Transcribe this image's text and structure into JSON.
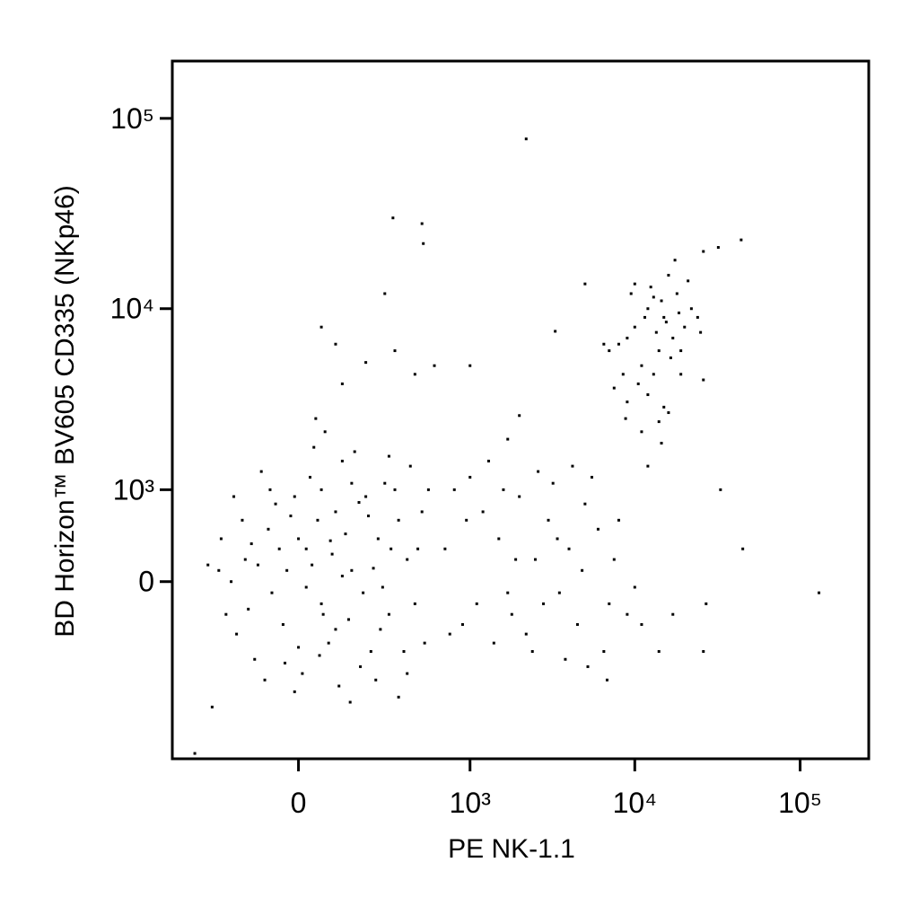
{
  "chart_data": {
    "type": "scatter",
    "x_label": "PE NK-1.1",
    "y_label": "BD Horizon™ BV605 CD335 (NKp46)",
    "xscale": "biexponential",
    "yscale": "biexponential",
    "color": "#000000",
    "xlim": [
      -520,
      260000
    ],
    "ylim": [
      -3100,
      200000
    ],
    "xticks": [
      0,
      {
        "value": 1000,
        "label": "10³"
      },
      {
        "value": 10000,
        "label": "10⁴"
      },
      {
        "value": 100000,
        "label": "10⁵"
      }
    ],
    "yticks": [
      0,
      {
        "value": 1000,
        "label": "10³"
      },
      {
        "value": 10000,
        "label": "10⁴"
      },
      {
        "value": 100000,
        "label": "10⁵"
      }
    ],
    "x": [
      -150,
      -80,
      20,
      60,
      100,
      -40,
      150,
      200,
      -120,
      30,
      250,
      -200,
      80,
      300,
      -60,
      120,
      10,
      180,
      -100,
      350,
      400,
      -30,
      50,
      90,
      -70,
      140,
      220,
      -160,
      280,
      40,
      -10,
      110,
      330,
      450,
      500,
      -180,
      70,
      160,
      -90,
      240,
      0,
      20,
      -50,
      130,
      190,
      60,
      -130,
      270,
      380,
      420,
      -20,
      100,
      210,
      -110,
      310,
      55,
      150,
      -75,
      35,
      260,
      470,
      520,
      -140,
      0,
      85,
      175,
      230,
      -35,
      145,
      300,
      400,
      -190,
      -220,
      45,
      -250,
      550,
      350,
      120,
      -10,
      65,
      -370,
      -300,
      -280,
      -240,
      10000,
      12000,
      15000,
      14000,
      9000,
      18000,
      16000,
      11000,
      13000,
      20000,
      8000,
      7000,
      17000,
      22000,
      9500,
      12500,
      14500,
      16500,
      19000,
      10500,
      11500,
      13500,
      15500,
      18500,
      8500,
      7500,
      12000,
      15000,
      14000,
      9000,
      6500,
      25000,
      21000,
      17500,
      11000,
      12000,
      14500,
      16000,
      24000,
      13000,
      10000,
      19000,
      26000,
      8800,
      26000,
      32000,
      44000,
      5000,
      3300,
      2200,
      320,
      500,
      510,
      280,
      60,
      100,
      120,
      330,
      200,
      450,
      600,
      1000,
      2000,
      1700,
      800,
      1000,
      1200,
      1500,
      2000,
      2500,
      3000,
      3500,
      4000,
      5000,
      6000,
      7000,
      8000,
      1800,
      2200,
      2800,
      4500,
      6500,
      900,
      1100,
      1300,
      1600,
      2600,
      3200,
      4200,
      5500,
      7500,
      9000,
      1400,
      3800,
      5200,
      6800,
      2400,
      3400,
      4800,
      1900,
      700,
      750,
      950,
      1700,
      33000,
      45000,
      130000,
      27000,
      26000,
      14000,
      17000,
      11000,
      10000
    ],
    "values": [
      200,
      500,
      300,
      -200,
      700,
      -400,
      100,
      900,
      -800,
      1200,
      400,
      0,
      -600,
      -300,
      800,
      1500,
      -1000,
      -900,
      1300,
      600,
      200,
      100,
      600,
      250,
      -100,
      -350,
      -700,
      600,
      1100,
      1800,
      -1300,
      -1200,
      1000,
      -200,
      700,
      -500,
      2200,
      1700,
      -1100,
      -1100,
      400,
      -50,
      300,
      450,
      -100,
      1000,
      350,
      -50,
      -700,
      1400,
      650,
      -450,
      650,
      150,
      300,
      -750,
      1100,
      1000,
      150,
      -450,
      300,
      -600,
      -250,
      -650,
      380,
      820,
      120,
      -850,
      -1500,
      1600,
      -1000,
      900,
      -300,
      2600,
      100,
      1000,
      -1400,
      50,
      900,
      -300,
      -2900,
      150,
      -1600,
      400,
      8000,
      10000,
      9000,
      6000,
      7000,
      12000,
      15000,
      5000,
      4500,
      8000,
      6500,
      6000,
      7000,
      10000,
      12000,
      13000,
      11000,
      5500,
      6000,
      4000,
      9000,
      7500,
      8500,
      9500,
      4500,
      3800,
      3500,
      3000,
      2500,
      3200,
      6500,
      7500,
      14000,
      18000,
      2200,
      1400,
      1900,
      2800,
      9000,
      11500,
      13500,
      4500,
      4200,
      2600,
      20000,
      21000,
      23000,
      13500,
      7600,
      78000,
      30000,
      28000,
      22000,
      12000,
      8000,
      6500,
      4000,
      6000,
      5200,
      4500,
      5000,
      5000,
      2700,
      2000,
      1000,
      1200,
      700,
      400,
      900,
      200,
      600,
      -100,
      300,
      800,
      500,
      -200,
      600,
      -300,
      -500,
      -200,
      -400,
      -700,
      -400,
      -200,
      1500,
      1000,
      1300,
      1100,
      1400,
      1200,
      200,
      -300,
      -600,
      -800,
      -900,
      -1100,
      -700,
      400,
      100,
      200,
      300,
      -500,
      600,
      -100,
      1000,
      300,
      -100,
      -200,
      -700,
      -700,
      -300,
      -400,
      -50
    ]
  }
}
